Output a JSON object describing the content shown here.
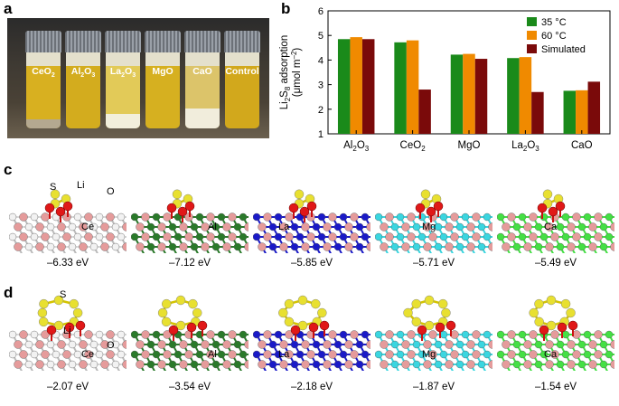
{
  "panels": {
    "a": "a",
    "b": "b",
    "c": "c",
    "d": "d"
  },
  "photo": {
    "vials": [
      {
        "label_main": "CeO",
        "label_sub": "2",
        "liquid": "#d8b020",
        "sediment": "#b4a890",
        "sediment_h": 10
      },
      {
        "label_main": "Al",
        "label_sub": "2",
        "label_main2": "O",
        "label_sub2": "3",
        "liquid": "#d3ac1e",
        "sediment": "#c9a926",
        "sediment_h": 0
      },
      {
        "label_main": "La",
        "label_sub": "2",
        "label_main2": "O",
        "label_sub2": "3",
        "liquid": "#e2ca58",
        "sediment": "#f2efdc",
        "sediment_h": 16
      },
      {
        "label_main": "MgO",
        "liquid": "#d6b020",
        "sediment": "#c9a926",
        "sediment_h": 0
      },
      {
        "label_main": "CaO",
        "liquid": "#dcc46a",
        "sediment": "#f1eddc",
        "sediment_h": 22
      },
      {
        "label_main": "Control",
        "liquid": "#d2a81c",
        "sediment": "#c9a926",
        "sediment_h": 0
      }
    ]
  },
  "chart_data": {
    "type": "bar",
    "categories": [
      "Al2O3",
      "CeO2",
      "MgO",
      "La2O3",
      "CaO"
    ],
    "category_labels": [
      {
        "main": "Al",
        "sub": "2",
        "main2": "O",
        "sub2": "3"
      },
      {
        "main": "CeO",
        "sub": "2",
        "main2": "",
        "sub2": ""
      },
      {
        "main": "MgO",
        "sub": "",
        "main2": "",
        "sub2": ""
      },
      {
        "main": "La",
        "sub": "2",
        "main2": "O",
        "sub2": "3"
      },
      {
        "main": "CaO",
        "sub": "",
        "main2": "",
        "sub2": ""
      }
    ],
    "series": [
      {
        "name": "35 °C",
        "color": "#1a8a1a",
        "values": [
          4.85,
          4.72,
          4.22,
          4.08,
          2.75
        ]
      },
      {
        "name": "60 °C",
        "color": "#f08a00",
        "values": [
          4.93,
          4.8,
          4.25,
          4.12,
          2.77
        ]
      },
      {
        "name": "Simulated",
        "color": "#7a0a0a",
        "values": [
          4.85,
          2.8,
          4.05,
          2.7,
          3.12
        ]
      }
    ],
    "ylabel_line1": "Li2S8 adsorption",
    "ylabel_line1_parts": {
      "a": "Li",
      "b": "2",
      "c": "S",
      "d": "8",
      "e": " adsorption"
    },
    "ylabel_line2": "(μmol m",
    "ylabel_line2_sup": "–2",
    "ylabel_line2_end": ")",
    "ylim": [
      1,
      6
    ],
    "yticks": [
      "1",
      "2",
      "3",
      "4",
      "5",
      "6"
    ],
    "legend": "top-right"
  },
  "row_c": {
    "energies": [
      "–6.33 eV",
      "–7.12 eV",
      "–5.85 eV",
      "–5.71 eV",
      "–5.49 eV"
    ],
    "labels": {
      "s": "S",
      "li": "Li",
      "o": "O",
      "ce": "Ce",
      "al": "Al",
      "la": "La",
      "mg": "Mg",
      "ca": "Ca"
    }
  },
  "row_d": {
    "energies": [
      "–2.07 eV",
      "–3.54 eV",
      "–2.18 eV",
      "–1.87 eV",
      "–1.54 eV"
    ],
    "labels": {
      "s": "S",
      "li": "Li",
      "o": "O",
      "ce": "Ce",
      "al": "Al",
      "la": "La",
      "mg": "Mg",
      "ca": "Ca"
    }
  },
  "colors": {
    "s": "#e8e030",
    "li": "#dd1010",
    "o": "#e01818",
    "pink": "#e59b9b",
    "ce": "#d8d8d8",
    "al": "#2a7a2a",
    "la": "#1a1ac8",
    "mg": "#3ad6e0",
    "ca": "#44e044"
  }
}
